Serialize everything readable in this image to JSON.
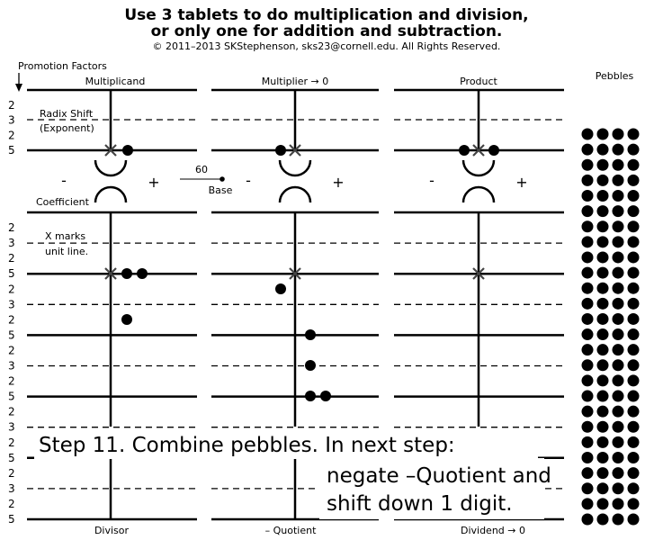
{
  "header": {
    "title_line1": "Use 3 tablets to do multiplication and division,",
    "title_line2": "or only one for addition and subtraction.",
    "copyright": "© 2011–2013 SKStephenson, sks23@cornell.edu. All Rights Reserved."
  },
  "labels": {
    "promotion_factors": "Promotion Factors",
    "radix_shift": "Radix Shift",
    "exponent": "(Exponent)",
    "coefficient": "Coefficient",
    "x_marks": "X marks",
    "unit_line": "unit line.",
    "base_value": "60",
    "base": "Base",
    "minus": "-",
    "plus": "+",
    "pebbles": "Pebbles"
  },
  "tablets": [
    {
      "top_label": "Multiplicand",
      "bottom_label": "Divisor"
    },
    {
      "top_label": "Multiplier → 0",
      "bottom_label": "– Quotient"
    },
    {
      "top_label": "Product",
      "bottom_label": "Dividend → 0"
    }
  ],
  "exponent_factors": [
    "2",
    "3",
    "2",
    "5"
  ],
  "coefficient_factors": [
    "2",
    "3",
    "2",
    "5",
    "2",
    "3",
    "2",
    "5",
    "2",
    "3",
    "2",
    "5",
    "2",
    "3",
    "2",
    "5",
    "2",
    "3",
    "2",
    "5"
  ],
  "instruction": {
    "line1": "Step 11. Combine pebbles.  In next step:",
    "line2": "negate –Quotient and",
    "line3": "shift down 1 digit."
  },
  "pebble_supply": {
    "rows": 26,
    "columns": 4
  }
}
